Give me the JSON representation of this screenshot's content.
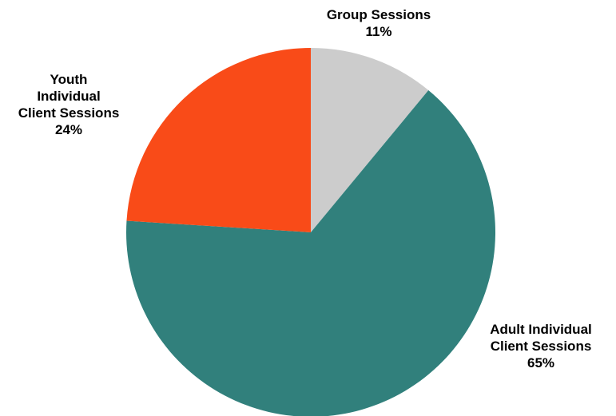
{
  "chart_data": {
    "type": "pie",
    "title": "",
    "start_angle_deg": 0,
    "direction": "clockwise",
    "slices": [
      {
        "name": "Group Sessions",
        "label_lines": [
          "Group Sessions"
        ],
        "percent_label": "11%",
        "value": 11,
        "color": "#cccccc"
      },
      {
        "name": "Adult Individual Client Sessions",
        "label_lines": [
          "Adult Individual",
          "Client Sessions"
        ],
        "percent_label": "65%",
        "value": 65,
        "color": "#31807c"
      },
      {
        "name": "Youth Individual Client Sessions",
        "label_lines": [
          "Youth",
          "Individual",
          "Client Sessions"
        ],
        "percent_label": "24%",
        "value": 24,
        "color": "#f94b18"
      }
    ],
    "legend": "none",
    "data_labels": "outside"
  }
}
